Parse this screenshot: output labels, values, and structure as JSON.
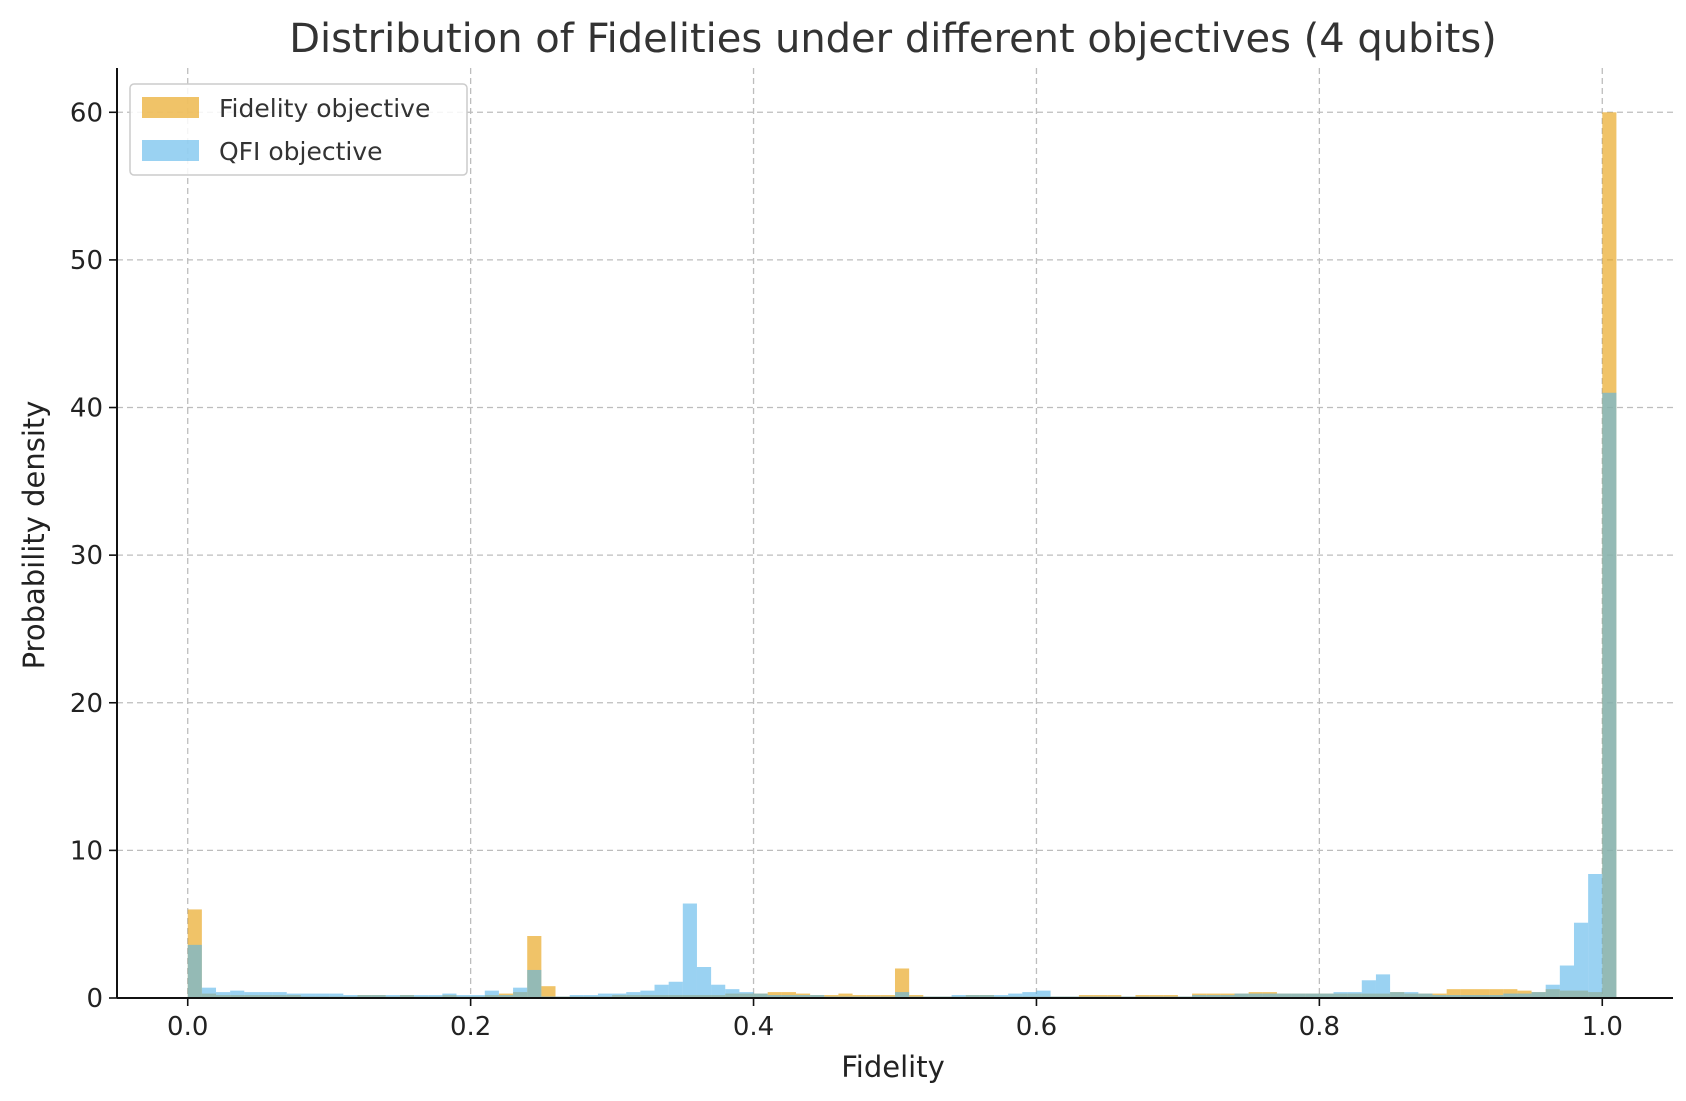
{
  "chart_data": {
    "type": "histogram",
    "title": "Distribution of Fidelities under different objectives (4 qubits)",
    "xlabel": "Fidelity",
    "ylabel": "Probability density",
    "xlim": [
      -0.05,
      1.05
    ],
    "ylim": [
      0,
      63
    ],
    "xticks": [
      0.0,
      0.2,
      0.4,
      0.6,
      0.8,
      1.0
    ],
    "xtick_labels": [
      "0.0",
      "0.2",
      "0.4",
      "0.6",
      "0.8",
      "1.0"
    ],
    "yticks": [
      0,
      10,
      20,
      30,
      40,
      50,
      60
    ],
    "ytick_labels": [
      "0",
      "10",
      "20",
      "30",
      "40",
      "50",
      "60"
    ],
    "grid": true,
    "legend_position": "top-left",
    "bin_start": 0.0,
    "bin_width": 0.01,
    "series": [
      {
        "name": "Fidelity objective",
        "color": "#E8A317",
        "alpha": 0.65,
        "values": [
          6.0,
          0.3,
          0.2,
          0.2,
          0.2,
          0.2,
          0.2,
          0.2,
          0.1,
          0.1,
          0.1,
          0.1,
          0.2,
          0.2,
          0.1,
          0.2,
          0.1,
          0.1,
          0.2,
          0.1,
          0.1,
          0.2,
          0.3,
          0.4,
          4.2,
          0.8,
          0.1,
          0.1,
          0.1,
          0.1,
          0.2,
          0.2,
          0.2,
          0.2,
          0.2,
          0.2,
          0.2,
          0.2,
          0.3,
          0.3,
          0.3,
          0.4,
          0.4,
          0.3,
          0.2,
          0.2,
          0.3,
          0.2,
          0.2,
          0.2,
          2.0,
          0.2,
          0.1,
          0.1,
          0.1,
          0.2,
          0.2,
          0.1,
          0.1,
          0.1,
          0.1,
          0.1,
          0.1,
          0.2,
          0.2,
          0.2,
          0.1,
          0.2,
          0.2,
          0.2,
          0.1,
          0.3,
          0.3,
          0.3,
          0.3,
          0.4,
          0.4,
          0.3,
          0.3,
          0.3,
          0.3,
          0.3,
          0.3,
          0.3,
          0.3,
          0.4,
          0.3,
          0.3,
          0.3,
          0.6,
          0.6,
          0.6,
          0.6,
          0.6,
          0.5,
          0.4,
          0.6,
          0.5,
          0.5,
          0.4,
          60.0
        ]
      },
      {
        "name": "QFI objective",
        "color": "#56B4E9",
        "alpha": 0.6,
        "values": [
          3.6,
          0.7,
          0.4,
          0.5,
          0.4,
          0.4,
          0.4,
          0.3,
          0.3,
          0.3,
          0.3,
          0.2,
          0.2,
          0.2,
          0.2,
          0.2,
          0.2,
          0.2,
          0.3,
          0.2,
          0.2,
          0.5,
          0.2,
          0.7,
          1.9,
          0.1,
          0.1,
          0.2,
          0.2,
          0.3,
          0.3,
          0.4,
          0.5,
          0.9,
          1.1,
          6.4,
          2.1,
          0.9,
          0.6,
          0.4,
          0.3,
          0.2,
          0.2,
          0.2,
          0.2,
          0.1,
          0.1,
          0.1,
          0.1,
          0.1,
          0.4,
          0.1,
          0.1,
          0.1,
          0.2,
          0.2,
          0.2,
          0.2,
          0.3,
          0.4,
          0.5,
          0.1,
          0.1,
          0.1,
          0.1,
          0.1,
          0.1,
          0.1,
          0.1,
          0.1,
          0.1,
          0.2,
          0.2,
          0.2,
          0.3,
          0.3,
          0.3,
          0.3,
          0.3,
          0.3,
          0.3,
          0.4,
          0.4,
          1.2,
          1.6,
          0.4,
          0.4,
          0.3,
          0.2,
          0.2,
          0.2,
          0.2,
          0.2,
          0.3,
          0.3,
          0.4,
          0.9,
          2.2,
          5.1,
          8.4,
          41.0
        ]
      }
    ],
    "overlap_color": "#8FB9B2"
  }
}
